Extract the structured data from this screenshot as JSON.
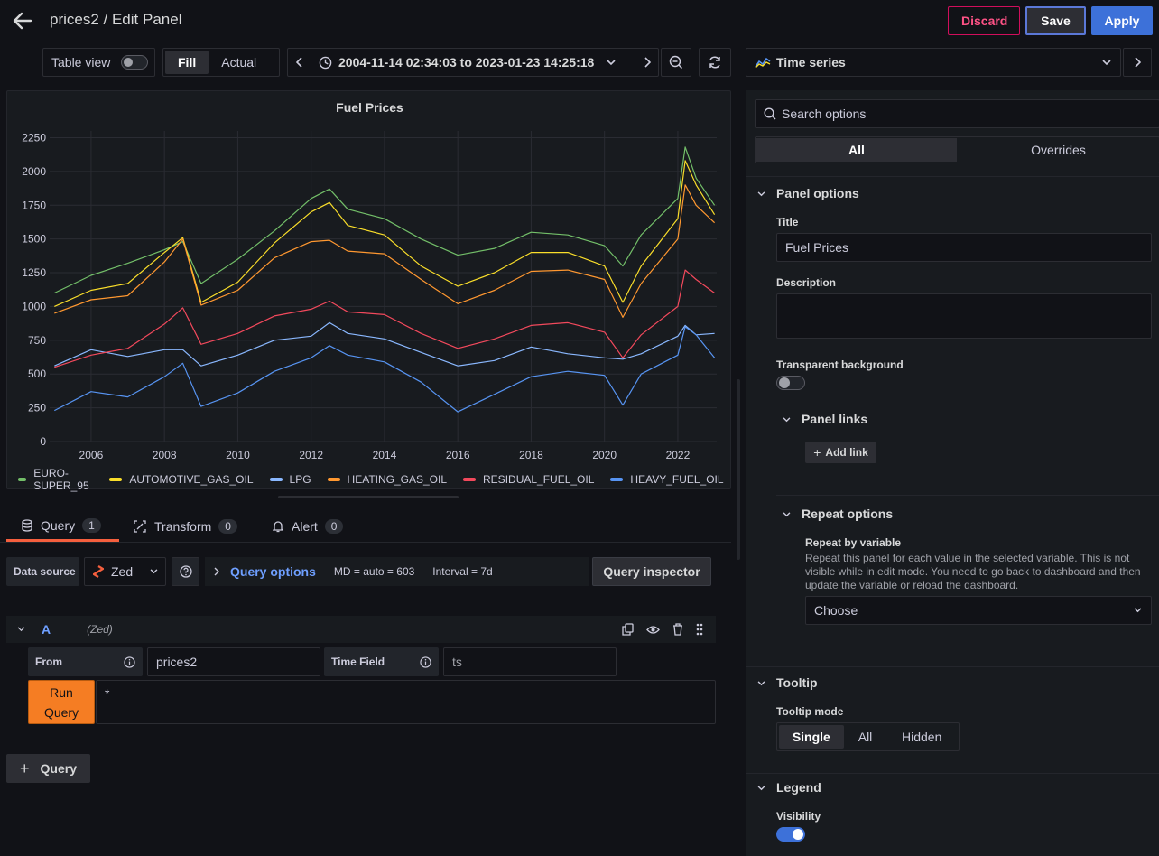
{
  "header": {
    "title": "prices2 / Edit Panel",
    "discard_label": "Discard",
    "save_label": "Save",
    "apply_label": "Apply"
  },
  "toolbar": {
    "table_view_label": "Table view",
    "fill_label": "Fill",
    "actual_label": "Actual",
    "time_range": "2004-11-14 02:34:03 to 2023-01-23 14:25:18",
    "visualization": "Time series"
  },
  "panel": {
    "title": "Fuel Prices"
  },
  "chart_data": {
    "type": "line",
    "title": "Fuel Prices",
    "xlim": [
      2004.87,
      2023.06
    ],
    "ylim": [
      0,
      2300
    ],
    "x_ticks": [
      "2006",
      "2008",
      "2010",
      "2012",
      "2014",
      "2016",
      "2018",
      "2020",
      "2022"
    ],
    "y_ticks": [
      "0",
      "250",
      "500",
      "750",
      "1000",
      "1250",
      "1500",
      "1750",
      "2000",
      "2250"
    ],
    "grid": true,
    "legend_position": "bottom-left",
    "x": [
      2005,
      2006,
      2007,
      2008,
      2008.5,
      2009,
      2010,
      2011,
      2012,
      2012.5,
      2013,
      2014,
      2015,
      2016,
      2017,
      2018,
      2019,
      2020,
      2020.5,
      2021,
      2022,
      2022.2,
      2022.5,
      2023
    ],
    "series": [
      {
        "name": "EURO-SUPER_95",
        "color": "#73bf69",
        "values": [
          1100,
          1230,
          1320,
          1420,
          1480,
          1170,
          1350,
          1560,
          1800,
          1870,
          1720,
          1650,
          1500,
          1380,
          1430,
          1550,
          1530,
          1450,
          1300,
          1530,
          1800,
          2180,
          1950,
          1750
        ]
      },
      {
        "name": "AUTOMOTIVE_GAS_OIL",
        "color": "#fade2a",
        "values": [
          1000,
          1120,
          1170,
          1400,
          1510,
          1030,
          1180,
          1470,
          1700,
          1770,
          1600,
          1530,
          1300,
          1150,
          1250,
          1400,
          1400,
          1300,
          1030,
          1300,
          1650,
          2080,
          1900,
          1680
        ]
      },
      {
        "name": "LPG",
        "color": "#8ab8ff",
        "values": [
          560,
          680,
          630,
          680,
          680,
          560,
          640,
          750,
          780,
          880,
          800,
          760,
          660,
          560,
          600,
          700,
          650,
          620,
          610,
          650,
          780,
          860,
          790,
          800
        ]
      },
      {
        "name": "HEATING_GAS_OIL",
        "color": "#ff9830",
        "values": [
          950,
          1050,
          1080,
          1330,
          1500,
          1010,
          1120,
          1360,
          1480,
          1490,
          1410,
          1390,
          1200,
          1020,
          1120,
          1260,
          1270,
          1200,
          920,
          1170,
          1500,
          1900,
          1750,
          1620
        ]
      },
      {
        "name": "RESIDUAL_FUEL_OIL",
        "color": "#f2495c",
        "values": [
          550,
          640,
          690,
          870,
          990,
          720,
          800,
          930,
          980,
          1040,
          960,
          940,
          800,
          690,
          760,
          860,
          880,
          810,
          620,
          790,
          1000,
          1270,
          1200,
          1100
        ]
      },
      {
        "name": "HEAVY_FUEL_OIL",
        "color": "#5794f2",
        "values": [
          230,
          370,
          330,
          480,
          580,
          260,
          360,
          520,
          620,
          710,
          640,
          590,
          440,
          220,
          350,
          480,
          520,
          490,
          270,
          500,
          640,
          850,
          790,
          620
        ]
      }
    ]
  },
  "query_tabs": [
    {
      "label": "Query",
      "count": "1"
    },
    {
      "label": "Transform",
      "count": "0"
    },
    {
      "label": "Alert",
      "count": "0"
    }
  ],
  "query": {
    "data_source_label": "Data source",
    "data_source": "Zed",
    "query_options_label": "Query options",
    "md_text": "MD = auto = 603",
    "interval_text": "Interval = 7d",
    "inspector_label": "Query inspector",
    "ref_id": "A",
    "ref_source": "(Zed)",
    "from_label": "From",
    "from_value": "prices2",
    "time_field_label": "Time Field",
    "time_field_value": "ts",
    "run_line1": "Run",
    "run_line2": "Query",
    "query_text": "*",
    "add_query_label": "Query"
  },
  "options": {
    "search_placeholder": "Search options",
    "tab_all": "All",
    "tab_overrides": "Overrides",
    "panel_options_title": "Panel options",
    "title_label": "Title",
    "title_value": "Fuel Prices",
    "description_label": "Description",
    "transparent_label": "Transparent background",
    "panel_links_title": "Panel links",
    "add_link_label": "Add link",
    "repeat_title": "Repeat options",
    "repeat_var_label": "Repeat by variable",
    "repeat_desc": "Repeat this panel for each value in the selected variable. This is not visible while in edit mode. You need to go back to dashboard and then update the variable or reload the dashboard.",
    "repeat_select": "Choose",
    "tooltip_title": "Tooltip",
    "tooltip_mode_label": "Tooltip mode",
    "tooltip_single": "Single",
    "tooltip_all": "All",
    "tooltip_hidden": "Hidden",
    "legend_title": "Legend",
    "visibility_label": "Visibility"
  }
}
